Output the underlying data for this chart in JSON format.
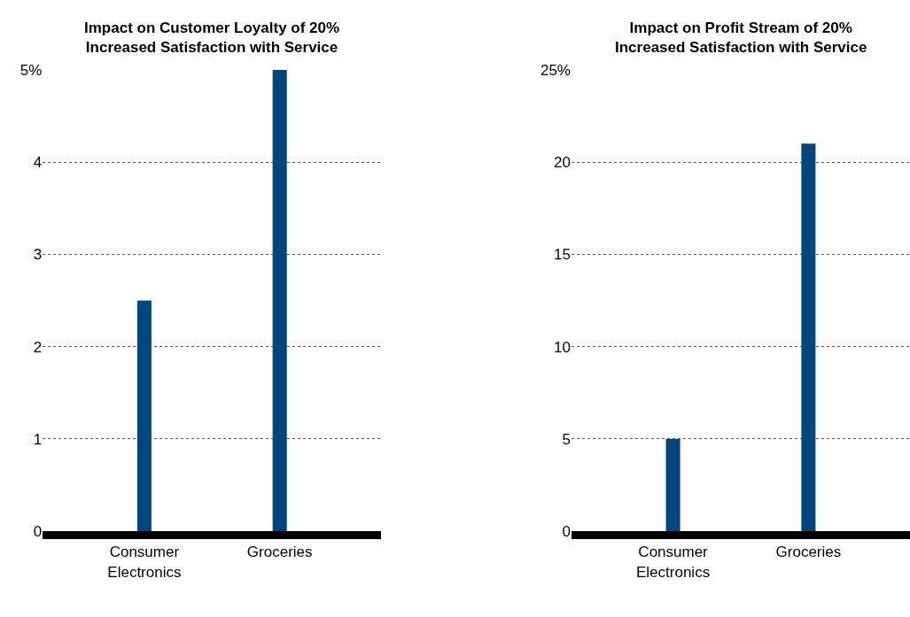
{
  "chart_data": [
    {
      "type": "bar",
      "title": "Impact on Customer Loyalty of 20%\nIncreased Satisfaction with Service",
      "categories": [
        "Consumer Electronics",
        "Groceries"
      ],
      "values": [
        2.5,
        5
      ],
      "color": "#00457c",
      "ylim": [
        0,
        5
      ],
      "yticks": [
        0,
        1,
        2,
        3,
        4,
        {
          "value": 5,
          "label": "5%"
        }
      ],
      "grid": "y",
      "legend": false
    },
    {
      "type": "bar",
      "title": "Impact on Profit Stream of 20%\nIncreased Satisfaction with Service",
      "categories": [
        "Consumer Electronics",
        "Groceries"
      ],
      "values": [
        5,
        21
      ],
      "color": "#00457c",
      "ylim": [
        0,
        25
      ],
      "yticks": [
        0,
        5,
        10,
        15,
        20,
        {
          "value": 25,
          "label": "25%"
        }
      ],
      "grid": "y",
      "legend": false
    }
  ]
}
